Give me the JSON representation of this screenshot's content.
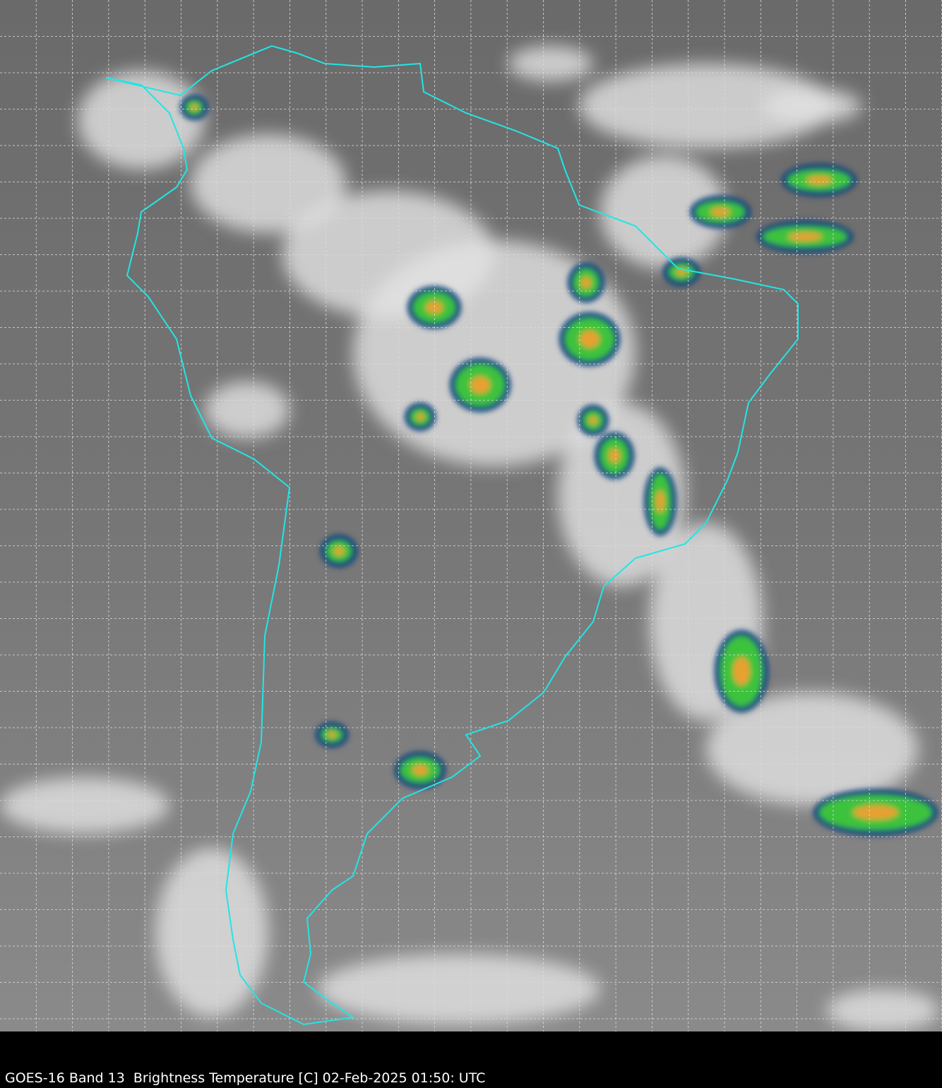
{
  "caption": "GOES-16 Band 13  Brightness Temperature [C] 02-Feb-2025 01:50: UTC",
  "colors": {
    "background": "#000000",
    "coastline": "#22e5e5",
    "grid": "#dddddd",
    "cold_cloud_blue": "#0a3d7a",
    "cold_cloud_green": "#3cc23c",
    "cold_cloud_yellow": "#e8e830",
    "cold_cloud_red": "#d0201a"
  }
}
